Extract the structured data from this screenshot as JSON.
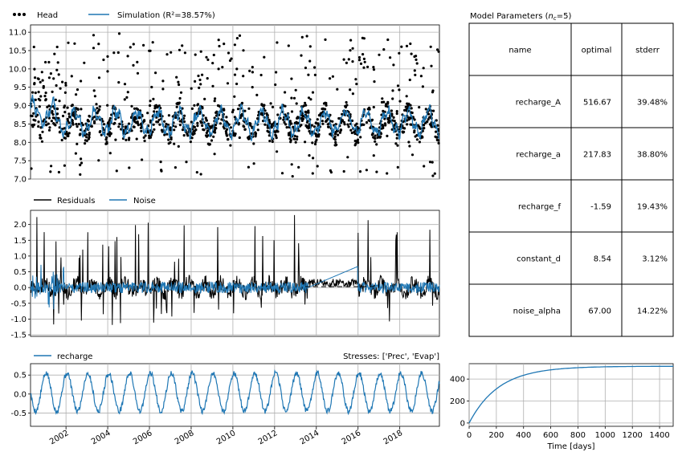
{
  "colors": {
    "simulation": "#1f77b4",
    "head": "#000000",
    "residuals": "#000000",
    "noise": "#1f77b4",
    "recharge": "#1f77b4",
    "step": "#1f77b4",
    "grid": "#b0b0b0"
  },
  "chart_data": [
    {
      "type": "scatter",
      "panel": "head-simulation",
      "legend": [
        "Head",
        "Simulation (R²=38.57%)"
      ],
      "legend_placement": "top-left",
      "x_range": [
        2000.3,
        2019.9
      ],
      "ylim": [
        7.0,
        11.2
      ],
      "yticks": [
        7.0,
        7.5,
        8.0,
        8.5,
        9.0,
        9.5,
        10.0,
        10.5,
        11.0
      ],
      "grid": true,
      "series": [
        {
          "name": "Head",
          "kind": "points",
          "mean": 8.55,
          "range": [
            6.9,
            11.3
          ]
        },
        {
          "name": "Simulation (R²=38.57%)",
          "kind": "line",
          "mean": 8.55,
          "range": [
            7.8,
            9.3
          ]
        }
      ]
    },
    {
      "type": "line",
      "panel": "residuals-noise",
      "legend": [
        "Residuals",
        "Noise"
      ],
      "legend_placement": "top-left",
      "x_range": [
        2000.3,
        2019.9
      ],
      "ylim": [
        -1.55,
        2.45
      ],
      "yticks": [
        -1.5,
        -1.0,
        -0.5,
        0.0,
        0.5,
        1.0,
        1.5,
        2.0
      ],
      "grid": true,
      "series": [
        {
          "name": "Residuals",
          "range": [
            -1.2,
            2.3
          ]
        },
        {
          "name": "Noise",
          "range": [
            -1.3,
            0.9
          ]
        }
      ]
    },
    {
      "type": "line",
      "panel": "recharge",
      "legend": [
        "recharge"
      ],
      "legend_placement": "top-left",
      "annotation": "Stresses: ['Prec', 'Evap']",
      "x_range": [
        2000.3,
        2019.9
      ],
      "ylim": [
        -0.85,
        0.8
      ],
      "yticks": [
        -0.5,
        0.0,
        0.5
      ],
      "xticks": [
        "2002",
        "2004",
        "2006",
        "2008",
        "2010",
        "2012",
        "2014",
        "2016",
        "2018"
      ],
      "grid": true,
      "series": [
        {
          "name": "recharge",
          "range": [
            -0.8,
            0.75
          ]
        }
      ]
    },
    {
      "type": "line",
      "panel": "step-response",
      "xlabel": "Time [days]",
      "xlim": [
        0,
        1500
      ],
      "ylim": [
        -30,
        540
      ],
      "xticks": [
        0,
        200,
        400,
        600,
        800,
        1000,
        1200,
        1400
      ],
      "yticks": [
        0,
        200,
        400
      ],
      "grid": true,
      "series": [
        {
          "name": "",
          "A": 516.67,
          "a": 217.83
        }
      ]
    }
  ],
  "params": {
    "title_prefix": "Model Parameters (",
    "title_var": "n",
    "title_sub": "c",
    "title_suffix": "=5)",
    "headers": [
      "name",
      "optimal",
      "stderr"
    ],
    "rows": [
      [
        "recharge_A",
        "516.67",
        "39.48%"
      ],
      [
        "recharge_a",
        "217.83",
        "38.80%"
      ],
      [
        "recharge_f",
        "-1.59",
        "19.43%"
      ],
      [
        "constant_d",
        "8.54",
        "3.12%"
      ],
      [
        "noise_alpha",
        "67.00",
        "14.22%"
      ]
    ]
  }
}
